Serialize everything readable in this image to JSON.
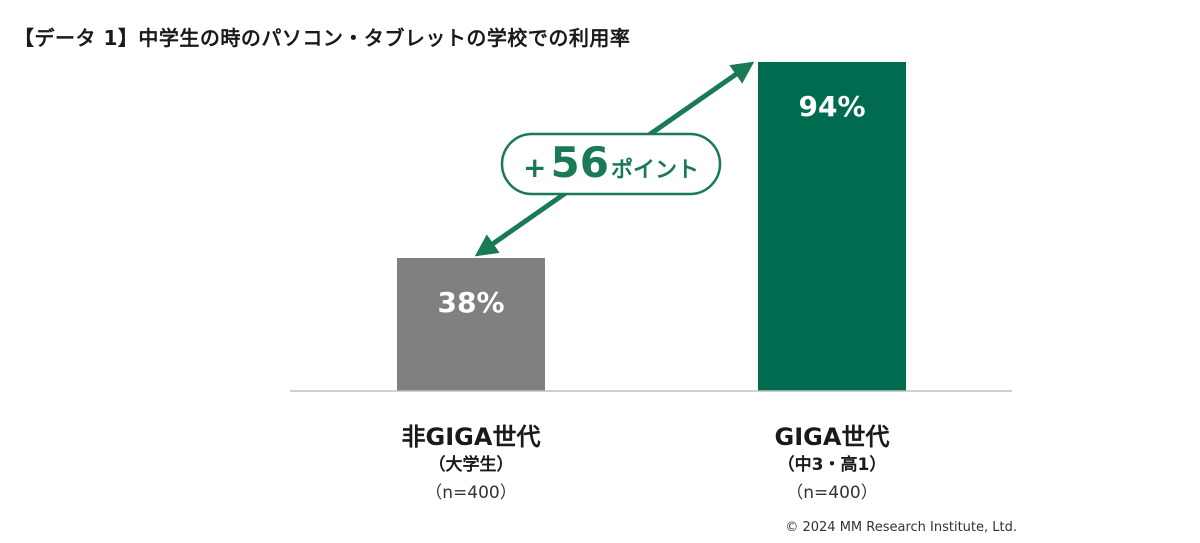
{
  "title": "【データ 1】中学生の時のパソコン・タブレットの学校での利用率",
  "chart_data": {
    "type": "bar",
    "categories": [
      "非GIGA世代",
      "GIGA世代"
    ],
    "category_subtitles": [
      "（大学生）",
      "（中3・高1）"
    ],
    "category_samples": [
      "（n=400）",
      "（n=400）"
    ],
    "values": [
      38,
      94
    ],
    "value_labels": [
      "38%",
      "94%"
    ],
    "bar_colors": [
      "#808080",
      "#006b4f"
    ],
    "ylim": [
      0,
      100
    ],
    "grid": false,
    "legend": "none",
    "annotation": {
      "prefix": "+",
      "number": "56",
      "suffix": "ポイント",
      "color": "#1a7a55"
    }
  },
  "copyright": "© 2024 MM Research Institute, Ltd."
}
